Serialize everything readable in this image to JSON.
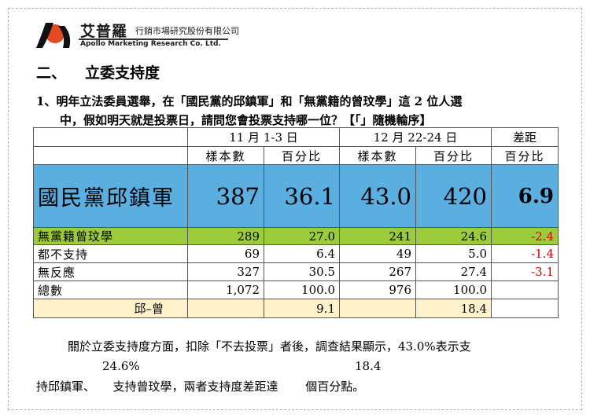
{
  "brand": {
    "name": "艾普羅",
    "subtitle": "行銷市場研究股份有限公司",
    "english": "Apollo Marketing Research Co. Ltd."
  },
  "section": {
    "number": "二、",
    "title": "立委支持度"
  },
  "question": {
    "line1": "1、明年立法委員選舉，在「國民黨的邱鎮軍」和「無黨籍的曾玟學」這 2 位人選",
    "line2": "中，假如明天就是投票日，請問您會投票支持哪一位？【「」隨機輪序】"
  },
  "table": {
    "period1": "11 月 1-3 日",
    "period2": "12 月 22-24 日",
    "gap_header": "差距",
    "sub_count": "樣本數",
    "sub_pct": "百分比",
    "rows": [
      {
        "label": "國民黨邱鎮軍",
        "c1": "387",
        "p1": "36.1",
        "c2": "43.0",
        "p2": "420",
        "gap": "6.9"
      },
      {
        "label": "無黨籍曾玟學",
        "c1": "289",
        "p1": "27.0",
        "c2": "241",
        "p2": "24.6",
        "gap": "-2.4"
      },
      {
        "label": "都不支持",
        "c1": "69",
        "p1": "6.4",
        "c2": "49",
        "p2": "5.0",
        "gap": "-1.4"
      },
      {
        "label": "無反應",
        "c1": "327",
        "p1": "30.5",
        "c2": "267",
        "p2": "27.4",
        "gap": "-3.1"
      },
      {
        "label": "總數",
        "c1": "1,072",
        "p1": "100.0",
        "c2": "976",
        "p2": "100.0",
        "gap": ""
      }
    ],
    "diff_row": {
      "label": "邱–曾",
      "p1": "9.1",
      "p2": "18.4"
    }
  },
  "note": {
    "line1": "關於立委支持度方面，扣除「不去投票」者後，調查結果顯示，43.0%表示支",
    "float1": "24.6%",
    "float2": "18.4",
    "line2": "持邱鎮軍、　　支持曾玟學，兩者支持度差距達　　 個百分點。"
  },
  "colors": {
    "kmt_row": "#5aaee0",
    "ind_row": "#9ccc3c",
    "diff_row": "#fff2cc",
    "negative": "#cc0000"
  }
}
